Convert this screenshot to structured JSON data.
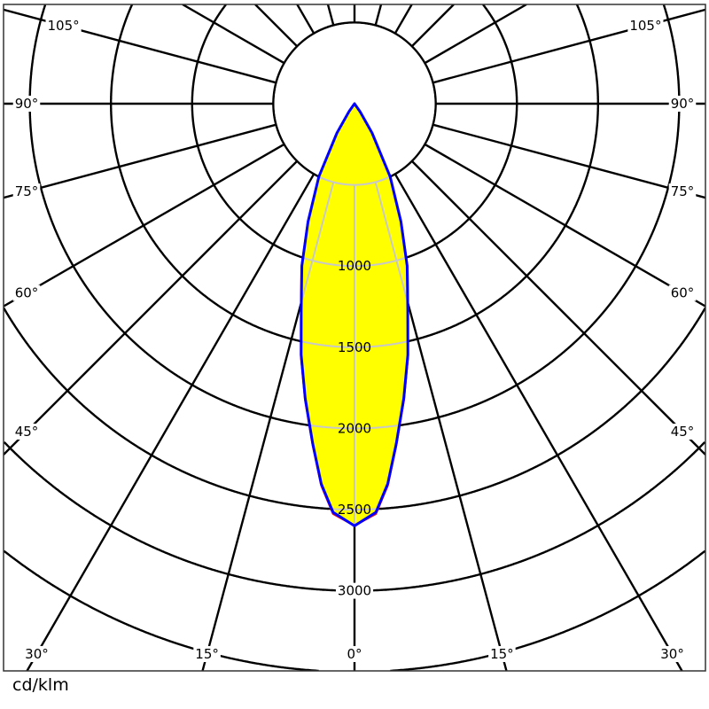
{
  "chart_data": {
    "type": "polar",
    "unit_label": "cd/klm",
    "radial_ticks": [
      500,
      1000,
      1500,
      2000,
      2500,
      3000,
      3500
    ],
    "radial_labels": [
      "1000",
      "1500",
      "2000",
      "2500",
      "3000"
    ],
    "radial_label_values": [
      1000,
      1500,
      2000,
      2500,
      3000
    ],
    "angle_step_deg": 15,
    "angle_labels": [
      {
        "text": "0°",
        "angle": 0
      },
      {
        "text": "15°",
        "angle": 15
      },
      {
        "text": "15°",
        "angle": -15
      },
      {
        "text": "30°",
        "angle": 30
      },
      {
        "text": "30°",
        "angle": -30
      },
      {
        "text": "45°",
        "angle": 45
      },
      {
        "text": "45°",
        "angle": -45
      },
      {
        "text": "60°",
        "angle": 60
      },
      {
        "text": "60°",
        "angle": -60
      },
      {
        "text": "75°",
        "angle": 75
      },
      {
        "text": "75°",
        "angle": -75
      },
      {
        "text": "90°",
        "angle": 90
      },
      {
        "text": "90°",
        "angle": -90
      },
      {
        "text": "105°",
        "angle": 105
      },
      {
        "text": "105°",
        "angle": -105
      }
    ],
    "series": [
      {
        "angles": [
          0,
          3,
          5,
          7,
          9.5,
          12,
          14.5,
          18,
          21.5,
          26,
          31,
          35,
          40
        ],
        "values": [
          2600,
          2520,
          2350,
          2110,
          1840,
          1580,
          1310,
          1050,
          780,
          500,
          210,
          60,
          0
        ],
        "color": "#0000ff",
        "fill": "#ffff00"
      },
      {
        "angles": [
          0,
          3,
          5,
          7,
          9.5,
          12,
          14.5,
          18,
          21.5,
          26,
          31,
          35,
          40
        ],
        "values": [
          2600,
          2530,
          2360,
          2120,
          1850,
          1590,
          1320,
          1060,
          790,
          510,
          220,
          65,
          0
        ],
        "color": "#ff0000"
      }
    ],
    "grid": true
  }
}
